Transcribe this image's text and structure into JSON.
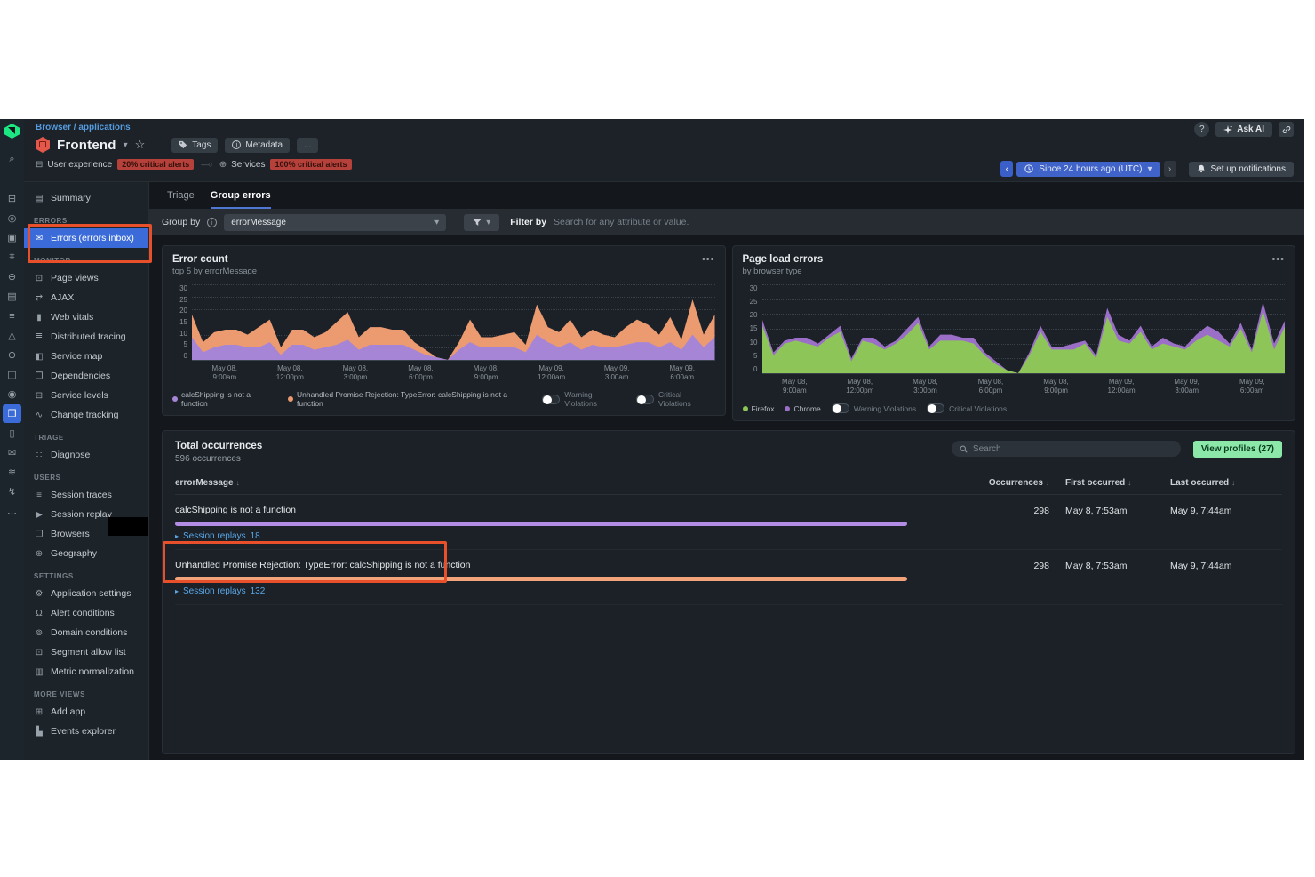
{
  "header": {
    "breadcrumb": "Browser / applications",
    "app_name": "Frontend",
    "tags_label": "Tags",
    "metadata_label": "Metadata",
    "more_label": "...",
    "help_label": "?",
    "ask_ai_label": "Ask AI",
    "user_experience_label": "User experience",
    "user_experience_alert": "20% critical alerts",
    "services_label": "Services",
    "services_alert": "100% critical alerts",
    "time_picker_label": "Since 24 hours ago (UTC)",
    "notifications_label": "Set up notifications"
  },
  "rail": {
    "icons": [
      {
        "name": "search-icon",
        "glyph": "⌕"
      },
      {
        "name": "plus-icon",
        "glyph": "+"
      },
      {
        "name": "apps-grid-icon",
        "glyph": "⊞"
      },
      {
        "name": "entity-explorer-icon",
        "glyph": "◎"
      },
      {
        "name": "dashboards-icon",
        "glyph": "▣"
      },
      {
        "name": "query-console-icon",
        "glyph": "⌗"
      },
      {
        "name": "globe-icon",
        "glyph": "⊕"
      },
      {
        "name": "document-icon",
        "glyph": "▤"
      },
      {
        "name": "logs-icon",
        "glyph": "≡"
      },
      {
        "name": "experiment-icon",
        "glyph": "△"
      },
      {
        "name": "alerts-icon",
        "glyph": "⊙"
      },
      {
        "name": "workloads-icon",
        "glyph": "◫"
      },
      {
        "name": "targets-icon",
        "glyph": "◉"
      },
      {
        "name": "browser-monitoring-icon",
        "glyph": "❒",
        "selected": true
      },
      {
        "name": "mobile-icon",
        "glyph": "▯"
      },
      {
        "name": "inbox-icon",
        "glyph": "✉"
      },
      {
        "name": "layers-icon",
        "glyph": "≋"
      },
      {
        "name": "automation-icon",
        "glyph": "↯"
      }
    ],
    "more_glyph": "⋯"
  },
  "sidebar": {
    "sections": [
      {
        "label": "",
        "items": [
          {
            "label": "Summary",
            "icon": "summary-icon",
            "glyph": "▤"
          }
        ]
      },
      {
        "label": "ERRORS",
        "items": [
          {
            "label": "Errors (errors inbox)",
            "icon": "errors-inbox-icon",
            "glyph": "✉",
            "selected": true
          }
        ]
      },
      {
        "label": "MONITOR",
        "items": [
          {
            "label": "Page views",
            "icon": "page-views-icon",
            "glyph": "⊡"
          },
          {
            "label": "AJAX",
            "icon": "ajax-icon",
            "glyph": "⇄"
          },
          {
            "label": "Web vitals",
            "icon": "web-vitals-icon",
            "glyph": "▮"
          },
          {
            "label": "Distributed tracing",
            "icon": "distributed-tracing-icon",
            "glyph": "≣"
          },
          {
            "label": "Service map",
            "icon": "service-map-icon",
            "glyph": "◧"
          },
          {
            "label": "Dependencies",
            "icon": "dependencies-icon",
            "glyph": "❒"
          },
          {
            "label": "Service levels",
            "icon": "service-levels-icon",
            "glyph": "⊟"
          },
          {
            "label": "Change tracking",
            "icon": "change-tracking-icon",
            "glyph": "∿"
          }
        ]
      },
      {
        "label": "TRIAGE",
        "items": [
          {
            "label": "Diagnose",
            "icon": "diagnose-icon",
            "glyph": "∷"
          }
        ]
      },
      {
        "label": "USERS",
        "items": [
          {
            "label": "Session traces",
            "icon": "session-traces-icon",
            "glyph": "≡"
          },
          {
            "label": "Session replay",
            "icon": "session-replay-icon",
            "glyph": "▶"
          },
          {
            "label": "Browsers",
            "icon": "browsers-icon",
            "glyph": "❒"
          },
          {
            "label": "Geography",
            "icon": "geography-icon",
            "glyph": "⊕"
          }
        ]
      },
      {
        "label": "SETTINGS",
        "items": [
          {
            "label": "Application settings",
            "icon": "gear-icon",
            "glyph": "⚙"
          },
          {
            "label": "Alert conditions",
            "icon": "bell-icon",
            "glyph": "Ω"
          },
          {
            "label": "Domain conditions",
            "icon": "domain-icon",
            "glyph": "⊚"
          },
          {
            "label": "Segment allow list",
            "icon": "segment-icon",
            "glyph": "⊡"
          },
          {
            "label": "Metric normalization",
            "icon": "metric-normalization-icon",
            "glyph": "▥"
          }
        ]
      },
      {
        "label": "MORE VIEWS",
        "items": [
          {
            "label": "Add app",
            "icon": "add-app-icon",
            "glyph": "⊞"
          },
          {
            "label": "Events explorer",
            "icon": "events-explorer-icon",
            "glyph": "▙"
          }
        ]
      }
    ]
  },
  "tabs": [
    {
      "label": "Triage",
      "active": false
    },
    {
      "label": "Group errors",
      "active": true
    }
  ],
  "filter_bar": {
    "group_by_label": "Group by",
    "group_by_value": "errorMessage",
    "filter_by_label": "Filter by",
    "filter_placeholder": "Search for any attribute or value."
  },
  "chart_data": [
    {
      "type": "area",
      "stacked": true,
      "title": "Error count",
      "subtitle": "top 5 by errorMessage",
      "ylim": [
        0,
        30
      ],
      "y_ticks": [
        30,
        25,
        20,
        15,
        10,
        5,
        0
      ],
      "grid": true,
      "legend_position": "bottom",
      "x_ticks": [
        [
          "May 08,",
          "9:00am"
        ],
        [
          "May 08,",
          "12:00pm"
        ],
        [
          "May 08,",
          "3:00pm"
        ],
        [
          "May 08,",
          "6:00pm"
        ],
        [
          "May 08,",
          "9:00pm"
        ],
        [
          "May 09,",
          "12:00am"
        ],
        [
          "May 09,",
          "3:00am"
        ],
        [
          "May 09,",
          "6:00am"
        ]
      ],
      "series": [
        {
          "name": "calcShipping is not a function",
          "color": "#a685d6",
          "values": [
            9,
            3,
            5,
            6,
            6,
            5,
            5,
            7,
            2,
            6,
            6,
            4,
            5,
            6,
            8,
            4,
            6,
            6,
            6,
            6,
            4,
            2,
            1,
            0,
            4,
            7,
            5,
            5,
            5,
            5,
            3,
            10,
            7,
            5,
            7,
            4,
            6,
            5,
            5,
            6,
            7,
            7,
            5,
            7,
            4,
            10,
            5,
            9
          ]
        },
        {
          "name": "Unhandled Promise Rejection: TypeError: calcShipping is not a function",
          "color": "#ec9a70",
          "values": [
            9,
            4,
            6,
            6,
            6,
            5,
            8,
            9,
            3,
            6,
            6,
            5,
            6,
            9,
            11,
            5,
            7,
            7,
            6,
            6,
            3,
            2,
            0,
            0,
            3,
            9,
            4,
            4,
            5,
            6,
            3,
            12,
            6,
            6,
            9,
            5,
            6,
            5,
            4,
            7,
            9,
            7,
            5,
            10,
            4,
            14,
            5,
            9
          ]
        }
      ],
      "toggles": [
        "Warning Violations",
        "Critical Violations"
      ]
    },
    {
      "type": "area",
      "stacked": true,
      "title": "Page load errors",
      "subtitle": "by browser type",
      "ylim": [
        0,
        30
      ],
      "y_ticks": [
        30,
        25,
        20,
        15,
        10,
        5,
        0
      ],
      "grid": true,
      "legend_position": "bottom",
      "x_ticks": [
        [
          "May 08,",
          "9:00am"
        ],
        [
          "May 08,",
          "12:00pm"
        ],
        [
          "May 08,",
          "3:00pm"
        ],
        [
          "May 08,",
          "6:00pm"
        ],
        [
          "May 08,",
          "9:00pm"
        ],
        [
          "May 09,",
          "12:00am"
        ],
        [
          "May 09,",
          "3:00am"
        ],
        [
          "May 09,",
          "6:00am"
        ]
      ],
      "series": [
        {
          "name": "Firefox",
          "color": "#8ec558",
          "values": [
            16,
            6,
            10,
            11,
            10,
            9,
            12,
            14,
            4,
            11,
            10,
            8,
            10,
            13,
            17,
            8,
            11,
            11,
            11,
            10,
            6,
            3,
            1,
            0,
            6,
            14,
            8,
            8,
            8,
            10,
            5,
            19,
            11,
            10,
            14,
            8,
            10,
            9,
            8,
            11,
            13,
            11,
            9,
            15,
            7,
            21,
            8,
            16
          ]
        },
        {
          "name": "Chrome",
          "color": "#9b6fc8",
          "values": [
            2,
            1,
            1,
            1,
            2,
            1,
            1,
            2,
            1,
            1,
            2,
            1,
            1,
            2,
            2,
            1,
            2,
            2,
            1,
            2,
            1,
            1,
            0,
            0,
            1,
            2,
            1,
            1,
            2,
            1,
            1,
            3,
            2,
            1,
            2,
            1,
            2,
            1,
            1,
            2,
            3,
            3,
            1,
            2,
            1,
            3,
            2,
            2
          ]
        }
      ],
      "toggles": [
        "Warning Violations",
        "Critical Violations"
      ]
    }
  ],
  "table": {
    "summary_title": "Total occurrences",
    "summary_subtitle": "596 occurrences",
    "search_placeholder": "Search",
    "view_profiles_label": "View profiles (27)",
    "columns": [
      "errorMessage",
      "Occurrences",
      "First occurred",
      "Last occurred"
    ],
    "rows": [
      {
        "errorMessage": "calcShipping is not a function",
        "bar_color": "#b38ce6",
        "session_replays_label": "Session replays",
        "session_replays": "18",
        "occurrences": "298",
        "first_occurred": "May 8, 7:53am",
        "last_occurred": "May 9, 7:44am",
        "highlighted": false
      },
      {
        "errorMessage": "Unhandled Promise Rejection: TypeError: calcShipping is not a function",
        "bar_color": "#f2a379",
        "session_replays_label": "Session replays",
        "session_replays": "132",
        "occurrences": "298",
        "first_occurred": "May 8, 7:53am",
        "last_occurred": "May 9, 7:44am",
        "highlighted": true
      }
    ]
  },
  "annotations": {
    "color": "#e8502b"
  }
}
